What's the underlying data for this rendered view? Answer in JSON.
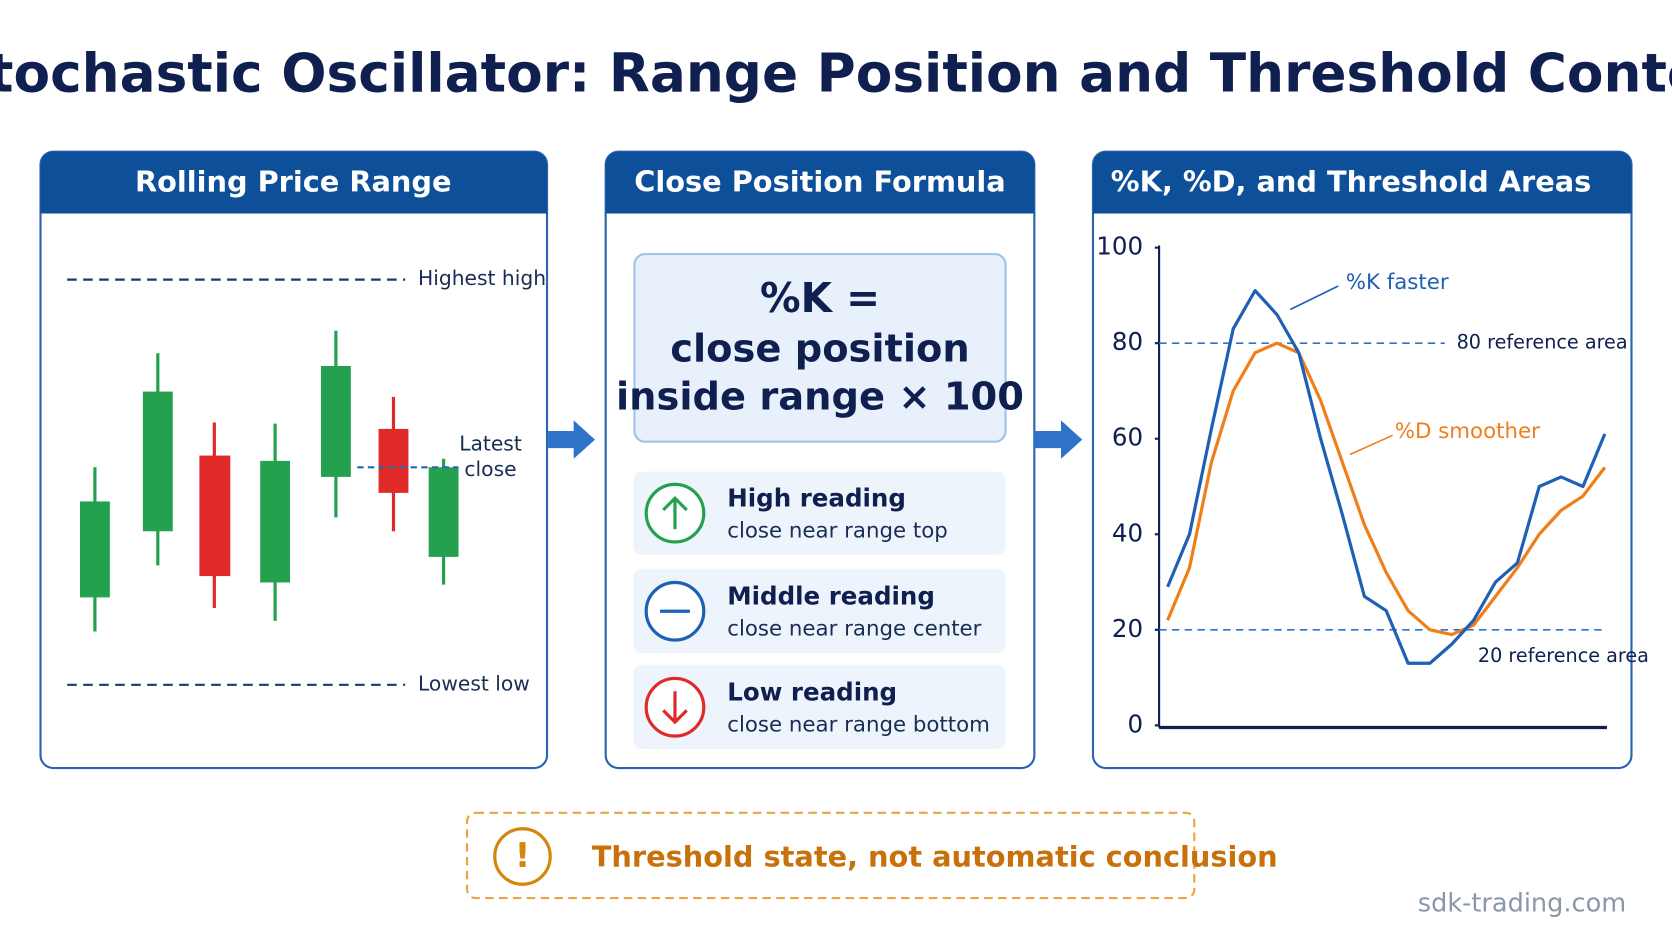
{
  "title": "Stochastic Oscillator: Range Position and Threshold Context",
  "panels": [
    {
      "title": "Rolling Price Range",
      "highest_label": "Highest high",
      "lowest_label": "Lowest low",
      "latest_label": [
        "Latest",
        "close"
      ]
    },
    {
      "title": "Close Position Formula",
      "formula": [
        "%K =",
        "close position",
        "inside range × 100"
      ],
      "readings": [
        {
          "title": "High reading",
          "text": "close near range top"
        },
        {
          "title": "Middle reading",
          "text": "close near range center"
        },
        {
          "title": "Low reading",
          "text": "close near range bottom"
        }
      ]
    },
    {
      "title": "%K, %D, and Threshold Areas"
    }
  ],
  "chart_data": {
    "type": "line",
    "ylim": [
      0,
      100
    ],
    "yticks": [
      0,
      20,
      40,
      60,
      80,
      100
    ],
    "series": [
      {
        "name": "%K faster",
        "color": "#1f5fb4",
        "values": [
          29,
          40,
          62,
          83,
          91,
          86,
          78,
          60,
          44,
          27,
          24,
          13,
          13,
          17,
          22,
          30,
          34,
          50,
          52,
          50,
          61
        ]
      },
      {
        "name": "%D smoother",
        "color": "#f07f1a",
        "values": [
          22,
          33,
          55,
          70,
          78,
          80,
          78,
          68,
          55,
          42,
          32,
          24,
          20,
          19,
          21,
          27,
          33,
          40,
          45,
          48,
          54
        ]
      }
    ],
    "reference_lines": [
      {
        "value": 80,
        "label": "80 reference area"
      },
      {
        "value": 20,
        "label": "20 reference area"
      }
    ]
  },
  "warning": "Threshold state, not automatic conclusion",
  "watermark": "sdk-trading.com"
}
